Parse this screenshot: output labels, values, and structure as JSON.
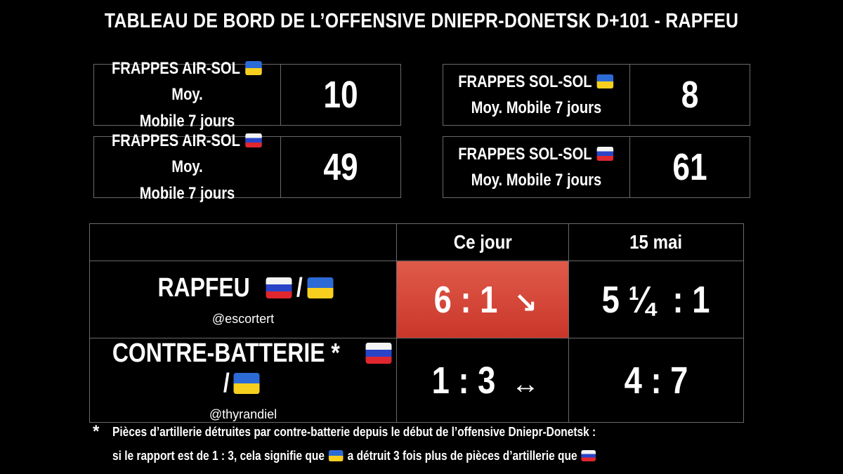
{
  "title": "TABLEAU DE BORD DE L’OFFENSIVE DNIEPR-DONETSK D+101 - RAPFEU",
  "boxes": {
    "air_ua": {
      "label_a": "FRAPPES AIR-SOL",
      "label_b": "Moy.",
      "label_c": "Mobile 7 jours",
      "value": "10",
      "flag": "ua-flag"
    },
    "sol_ua": {
      "label_a": "FRAPPES SOL-SOL",
      "label_c": "Moy. Mobile 7 jours",
      "value": "8",
      "flag": "ua-flag"
    },
    "air_ru": {
      "label_a": "FRAPPES AIR-SOL",
      "label_b": "Moy.",
      "label_c": "Mobile 7 jours",
      "value": "49",
      "flag": "ru-flag"
    },
    "sol_ru": {
      "label_a": "FRAPPES SOL-SOL",
      "label_c": "Moy. Mobile 7 jours",
      "value": "61",
      "flag": "ru-flag"
    }
  },
  "table": {
    "col_today": "Ce jour",
    "col_date": "15 mai",
    "rapfeu": {
      "label": "RAPFEU",
      "sep": "/",
      "handle": "@escortert",
      "today": "6 : 1",
      "today_trend": "↘",
      "date": "5 ¼  : 1"
    },
    "contre": {
      "label": "CONTRE-BATTERIE *",
      "sep": "/",
      "handle": "@thyrandiel",
      "today": "1 : 3",
      "today_trend": "↔",
      "date": "4 : 7"
    },
    "highlight_color": "#d4463a"
  },
  "footnote": {
    "star": "*",
    "line1": "Pièces d’artillerie détruites par contre-batterie depuis le début de l’offensive Dniepr-Donetsk :",
    "line2_a": "si le rapport est de 1 : 3, cela signifie que",
    "line2_b": "a détruit 3 fois plus de pièces d’artillerie que"
  },
  "colors": {
    "background": "#000000",
    "border": "#6a6a6a",
    "text": "#ffffff"
  }
}
